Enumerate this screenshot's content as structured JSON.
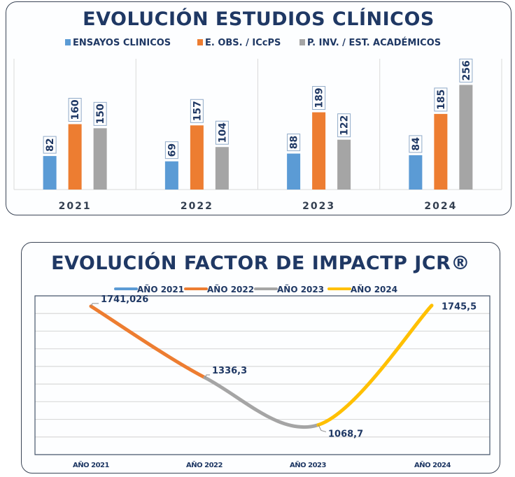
{
  "chart_data": [
    {
      "type": "bar",
      "title": "EVOLUCIÓN ESTUDIOS CLÍNICOS",
      "categories": [
        "2021",
        "2022",
        "2023",
        "2024"
      ],
      "series": [
        {
          "name": "ENSAYOS CLINICOS",
          "color": "#5b9bd5",
          "values": [
            82,
            69,
            88,
            84
          ]
        },
        {
          "name": "E. OBS. / ICcPS",
          "color": "#ed7d31",
          "values": [
            160,
            157,
            189,
            185
          ]
        },
        {
          "name": "P. INV. / EST. ACADÉMICOS",
          "color": "#a5a5a5",
          "values": [
            150,
            104,
            122,
            256
          ]
        }
      ],
      "xlabel": "",
      "ylabel": "",
      "ylim": [
        0,
        320
      ],
      "grid": false,
      "legend": "top",
      "data_labels": true
    },
    {
      "type": "line",
      "title": "EVOLUCIÓN FACTOR DE IMPACTP JCR®",
      "categories": [
        "AÑO 2021",
        "AÑO 2022",
        "AÑO 2023",
        "AÑO 2024"
      ],
      "values": [
        1741.026,
        1336.3,
        1068.7,
        1745.5
      ],
      "value_labels": [
        "1741,026",
        "1336,3",
        "1068,7",
        "1745,5"
      ],
      "series": [
        {
          "name": "AÑO 2021",
          "color": "#5b9bd5"
        },
        {
          "name": "AÑO 2022",
          "color": "#ed7d31",
          "segment": [
            0,
            1
          ]
        },
        {
          "name": "AÑO 2023",
          "color": "#a5a5a5",
          "segment": [
            1,
            2
          ]
        },
        {
          "name": "AÑO 2024",
          "color": "#ffc000",
          "segment": [
            2,
            3
          ]
        }
      ],
      "xlabel": "",
      "ylabel": "",
      "ylim": [
        900,
        1800
      ],
      "ytick_step": 100,
      "grid": true,
      "legend": "top",
      "smooth": true
    }
  ],
  "style": {
    "text_color": "#1f3864",
    "grid_color": "#d9d9d9",
    "axis_color": "#3b4556"
  }
}
